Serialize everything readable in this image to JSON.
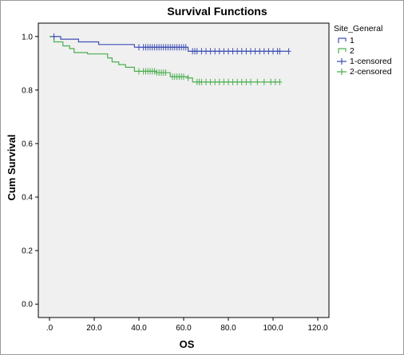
{
  "chart_data": {
    "type": "line",
    "title": "Survival Functions",
    "xlabel": "OS",
    "ylabel": "Cum Survival",
    "xlim": [
      -5,
      125
    ],
    "ylim": [
      -0.05,
      1.05
    ],
    "x_ticks": [
      0,
      20,
      40,
      60,
      80,
      100,
      120
    ],
    "x_tick_labels": [
      ".0",
      "20.0",
      "40.0",
      "60.0",
      "80.0",
      "100.0",
      "120.0"
    ],
    "y_ticks": [
      0.0,
      0.2,
      0.4,
      0.6,
      0.8,
      1.0
    ],
    "y_tick_labels": [
      "0.0",
      "0.2",
      "0.4",
      "0.6",
      "0.8",
      "1.0"
    ],
    "grid": false,
    "legend": {
      "title": "Site_General",
      "placement": "right",
      "entries": [
        "1",
        "2",
        "1-censored",
        "2-censored"
      ]
    },
    "series": [
      {
        "name": "1",
        "color": "#3f51b5",
        "x": [
          0,
          5,
          13,
          22,
          38,
          62,
          107
        ],
        "y": [
          1.0,
          0.99,
          0.98,
          0.97,
          0.96,
          0.945,
          0.945
        ]
      },
      {
        "name": "2",
        "color": "#4caf50",
        "x": [
          0,
          2,
          6,
          9,
          11,
          17,
          26,
          28,
          31,
          34,
          38,
          48,
          54,
          62,
          64,
          103
        ],
        "y": [
          1.0,
          0.98,
          0.965,
          0.955,
          0.94,
          0.935,
          0.92,
          0.905,
          0.895,
          0.885,
          0.87,
          0.865,
          0.85,
          0.845,
          0.83,
          0.83
        ]
      }
    ],
    "censored": [
      {
        "name": "1-censored",
        "color": "#3f51b5",
        "x": [
          2,
          40,
          42,
          43,
          44,
          45,
          46,
          47,
          48,
          49,
          50,
          51,
          52,
          53,
          54,
          55,
          56,
          57,
          58,
          59,
          60,
          61,
          64,
          65,
          66,
          68,
          70,
          72,
          74,
          76,
          78,
          80,
          82,
          84,
          86,
          88,
          90,
          92,
          94,
          96,
          98,
          100,
          102,
          103,
          107
        ],
        "y": [
          1.0,
          0.96,
          0.96,
          0.96,
          0.96,
          0.96,
          0.96,
          0.96,
          0.96,
          0.96,
          0.96,
          0.96,
          0.96,
          0.96,
          0.96,
          0.96,
          0.96,
          0.96,
          0.96,
          0.96,
          0.96,
          0.96,
          0.945,
          0.945,
          0.945,
          0.945,
          0.945,
          0.945,
          0.945,
          0.945,
          0.945,
          0.945,
          0.945,
          0.945,
          0.945,
          0.945,
          0.945,
          0.945,
          0.945,
          0.945,
          0.945,
          0.945,
          0.945,
          0.945,
          0.945
        ]
      },
      {
        "name": "2-censored",
        "color": "#4caf50",
        "x": [
          40,
          42,
          43,
          44,
          45,
          46,
          47,
          48,
          49,
          50,
          51,
          52,
          55,
          56,
          57,
          58,
          59,
          60,
          62,
          66,
          67,
          68,
          70,
          72,
          74,
          76,
          78,
          80,
          82,
          84,
          86,
          88,
          90,
          93,
          96,
          99,
          101,
          103
        ],
        "y": [
          0.87,
          0.87,
          0.87,
          0.87,
          0.87,
          0.87,
          0.87,
          0.865,
          0.865,
          0.865,
          0.865,
          0.865,
          0.85,
          0.85,
          0.85,
          0.85,
          0.85,
          0.85,
          0.845,
          0.83,
          0.83,
          0.83,
          0.83,
          0.83,
          0.83,
          0.83,
          0.83,
          0.83,
          0.83,
          0.83,
          0.83,
          0.83,
          0.83,
          0.83,
          0.83,
          0.83,
          0.83,
          0.83
        ]
      }
    ]
  }
}
